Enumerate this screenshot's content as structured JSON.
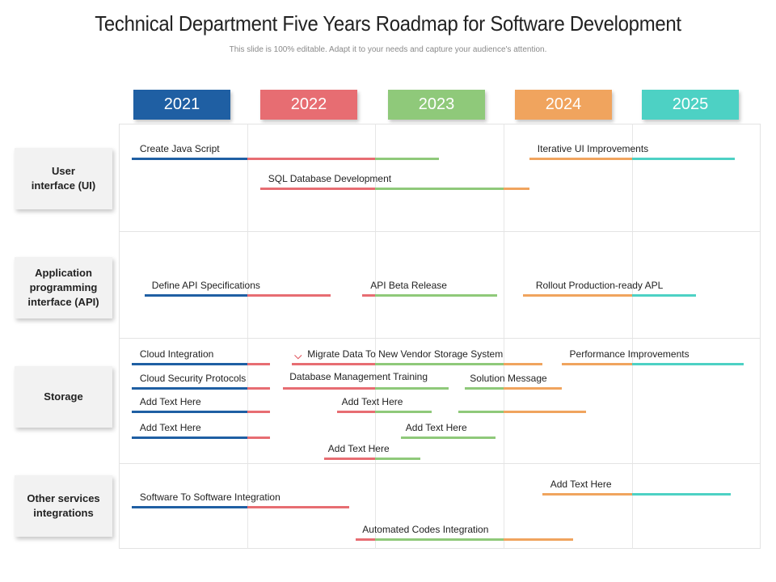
{
  "title": "Technical Department Five Years Roadmap for Software Development",
  "subtitle": "This slide is 100% editable. Adapt it to your needs and capture your audience's attention.",
  "colors": {
    "2021": "#1f5fa3",
    "2022": "#e76d72",
    "2023": "#8fc97a",
    "2024": "#f0a45e",
    "2025": "#4dd1c4"
  },
  "years": [
    {
      "label": "2021",
      "color": "#1f5fa3"
    },
    {
      "label": "2022",
      "color": "#e76d72"
    },
    {
      "label": "2023",
      "color": "#8fc97a"
    },
    {
      "label": "2024",
      "color": "#f0a45e"
    },
    {
      "label": "2025",
      "color": "#4dd1c4"
    }
  ],
  "categories": [
    {
      "label": "User interface (UI)"
    },
    {
      "label": "Application programming interface (API)"
    },
    {
      "label": "Storage"
    },
    {
      "label": "Other services integrations"
    }
  ],
  "tasks": [
    {
      "label": "Create Java Script",
      "start": 2021.1,
      "end": 2023.5
    },
    {
      "label": "Iterative UI Improvements",
      "start": 2024.2,
      "end": 2025.8
    },
    {
      "label": "SQL Database Development",
      "start": 2022.1,
      "end": 2024.2
    },
    {
      "label": "Define API Specifications",
      "start": 2021.2,
      "end": 2022.65
    },
    {
      "label": "API Beta Release",
      "start": 2022.9,
      "end": 2023.95
    },
    {
      "label": "Rollout Production-ready APL",
      "start": 2024.15,
      "end": 2025.5
    },
    {
      "label": "Cloud Integration",
      "start": 2021.1,
      "end": 2022.18
    },
    {
      "label": "Migrate Data To New Vendor Storage System",
      "start": 2022.35,
      "end": 2024.3
    },
    {
      "label": "Performance Improvements",
      "start": 2024.45,
      "end": 2025.87
    },
    {
      "label": "Cloud Security Protocols",
      "start": 2021.1,
      "end": 2022.18
    },
    {
      "label": "Database Management Training",
      "start": 2022.28,
      "end": 2023.57
    },
    {
      "label": "Solution Message",
      "start": 2023.7,
      "end": 2024.45
    },
    {
      "label": "Add Text Here",
      "start": 2021.1,
      "end": 2022.18
    },
    {
      "label": "Add Text Here",
      "start": 2022.7,
      "end": 2023.44
    },
    {
      "label": "",
      "start": 2023.65,
      "end": 2024.64
    },
    {
      "label": "Add Text Here",
      "start": 2021.1,
      "end": 2022.18
    },
    {
      "label": "Add Text Here",
      "start": 2023.2,
      "end": 2023.94
    },
    {
      "label": "Add Text Here",
      "start": 2022.6,
      "end": 2023.35
    },
    {
      "label": "Software To Software Integration",
      "start": 2021.1,
      "end": 2022.8
    },
    {
      "label": "Add Text Here",
      "start": 2024.3,
      "end": 2025.77
    },
    {
      "label": "Automated Codes Integration",
      "start": 2022.85,
      "end": 2024.54
    }
  ]
}
